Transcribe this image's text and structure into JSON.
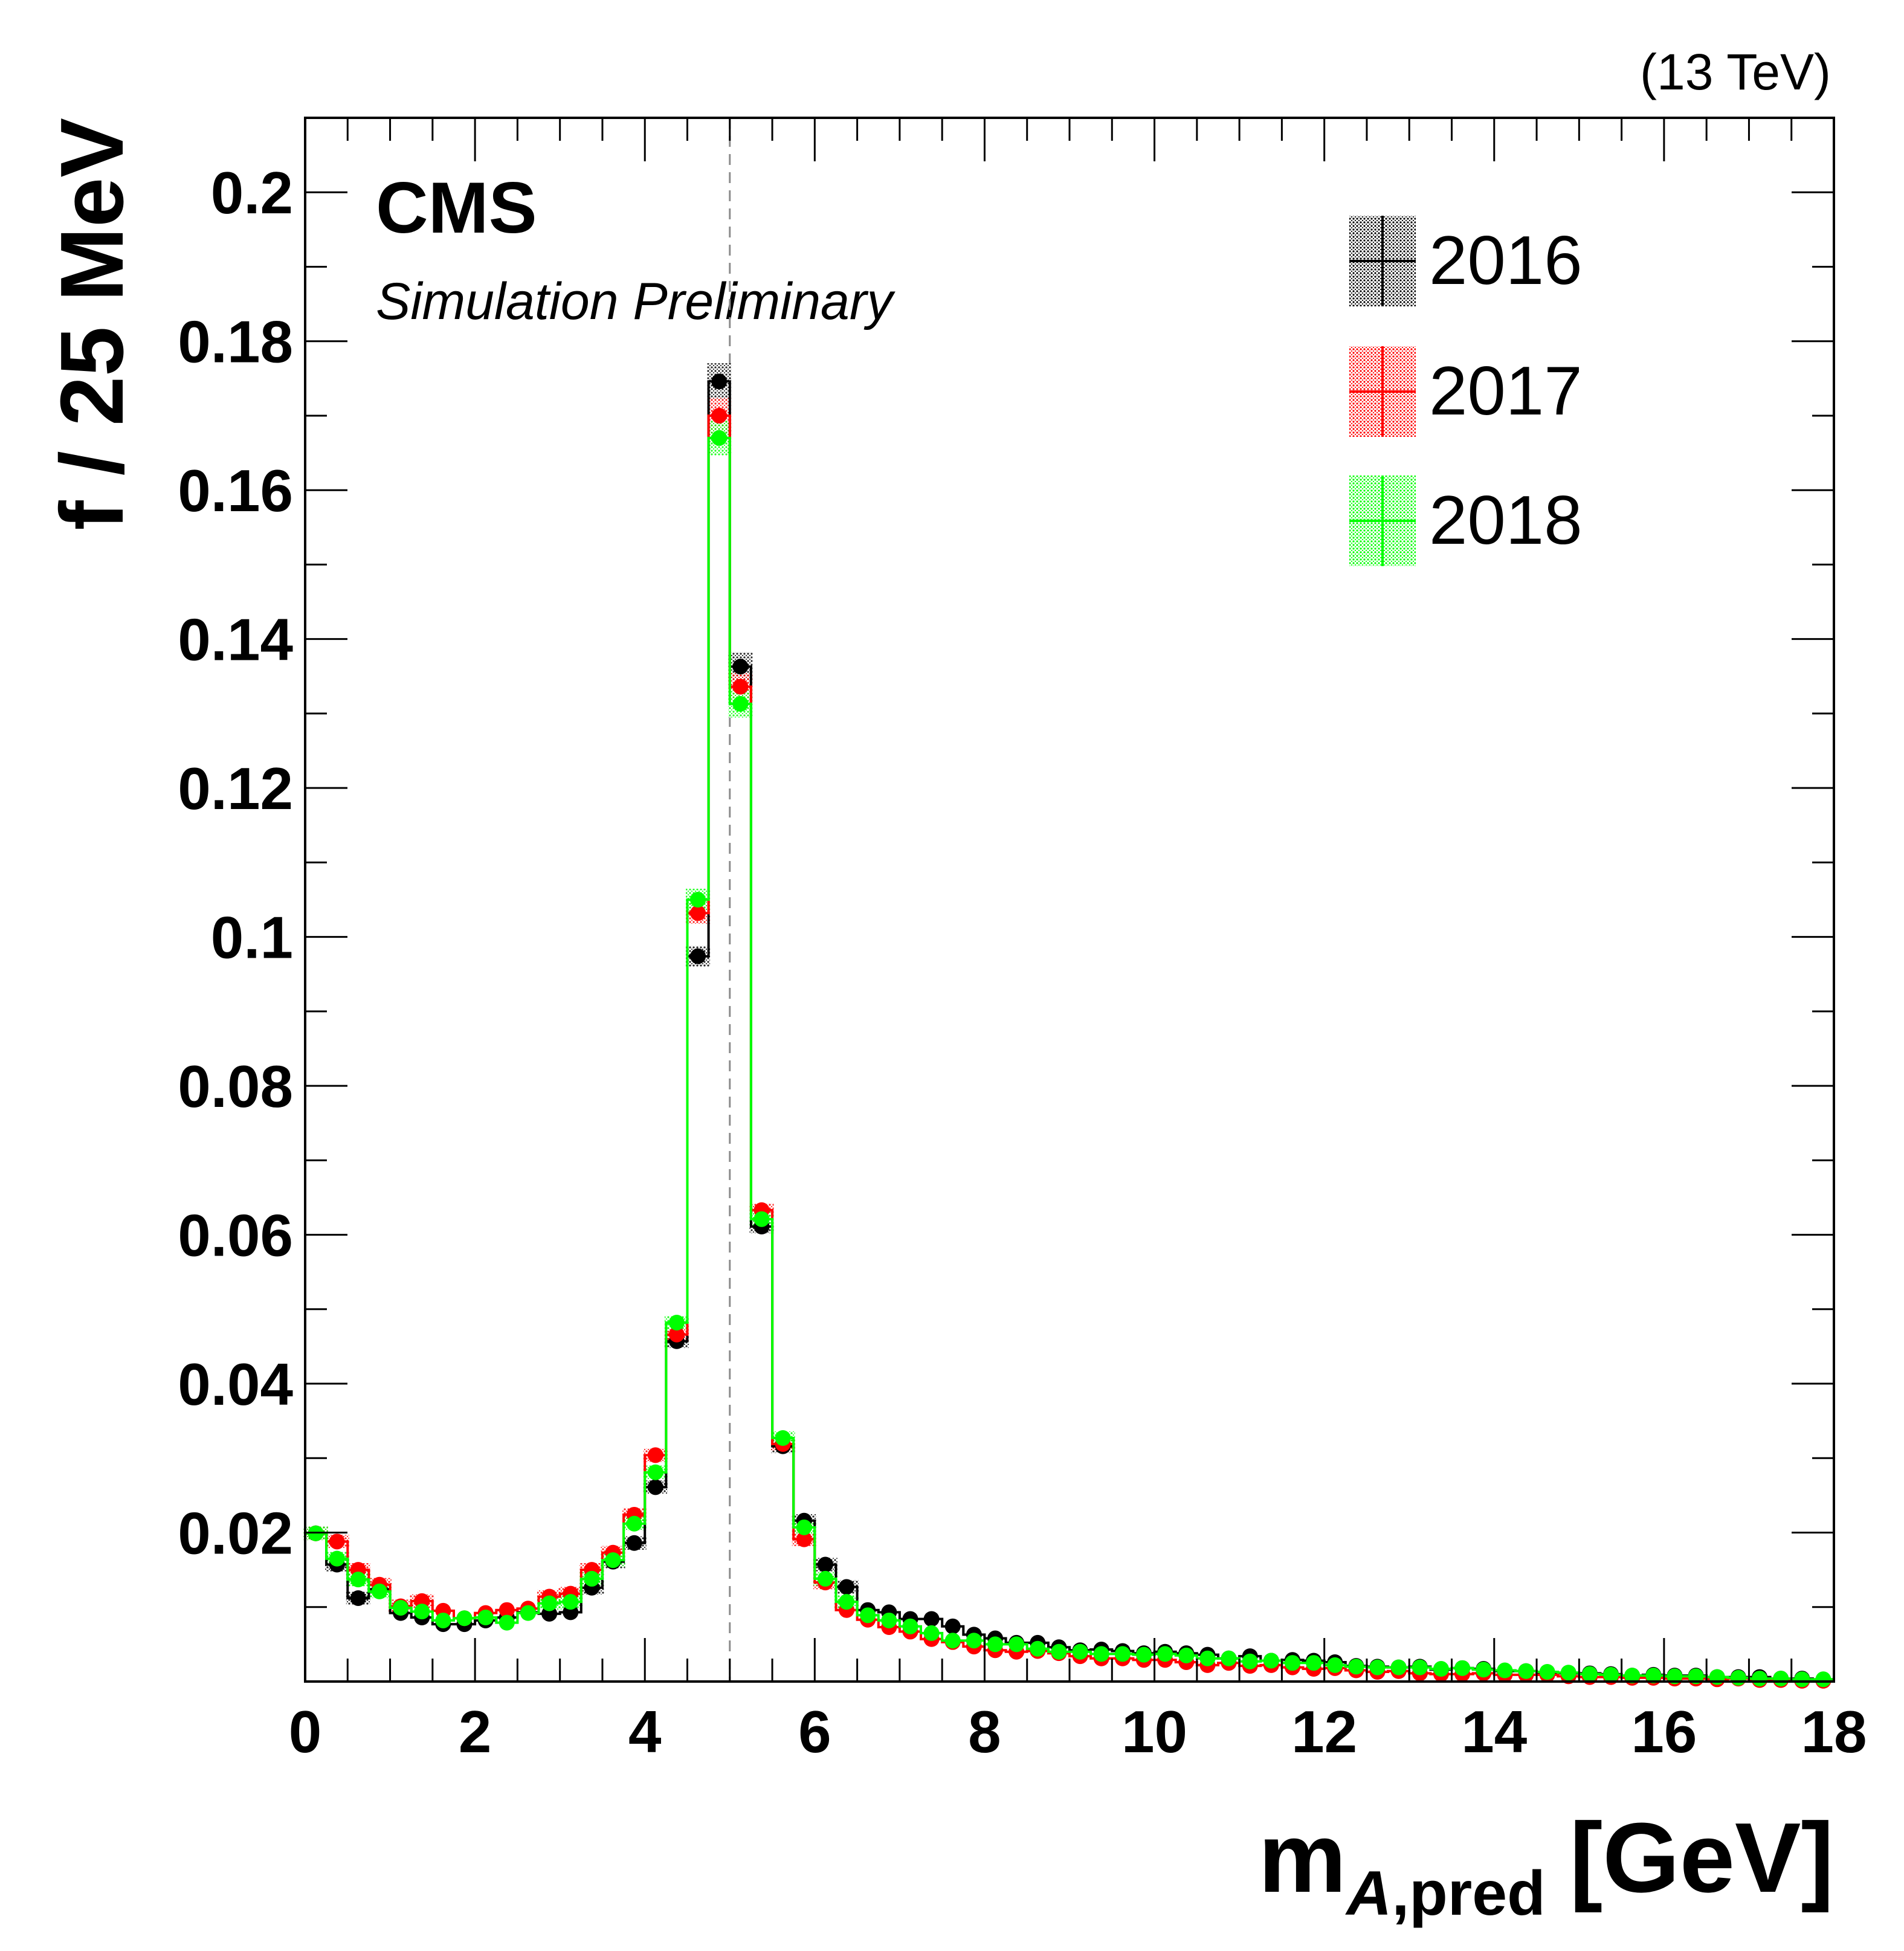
{
  "header": {
    "energy": "(13 TeV)",
    "experiment": "CMS",
    "status": "Simulation Preliminary"
  },
  "chart_data": {
    "type": "scatter",
    "title": "",
    "xlabel_main": "m",
    "xlabel_sub": "A,pred",
    "xlabel_unit": "[GeV]",
    "ylabel": "f / 25 MeV",
    "xlim": [
      0,
      18
    ],
    "ylim": [
      0,
      0.21
    ],
    "xticks": [
      0,
      2,
      4,
      6,
      8,
      10,
      12,
      14,
      16,
      18
    ],
    "xtick_labels": [
      "0",
      "2",
      "4",
      "6",
      "8",
      "10",
      "12",
      "14",
      "16",
      "18"
    ],
    "yticks": [
      0.02,
      0.04,
      0.06,
      0.08,
      0.1,
      0.12,
      0.14,
      0.16,
      0.18,
      0.2
    ],
    "ytick_labels": [
      "0.02",
      "0.04",
      "0.06",
      "0.08",
      "0.1",
      "0.12",
      "0.14",
      "0.16",
      "0.18",
      "0.2"
    ],
    "reference_line_x": 5.0,
    "legend_position": "top-right",
    "bin_width": 0.25,
    "x": [
      0.125,
      0.375,
      0.625,
      0.875,
      1.125,
      1.375,
      1.625,
      1.875,
      2.125,
      2.375,
      2.625,
      2.875,
      3.125,
      3.375,
      3.625,
      3.875,
      4.125,
      4.375,
      4.625,
      4.875,
      5.125,
      5.375,
      5.625,
      5.875,
      6.125,
      6.375,
      6.625,
      6.875,
      7.125,
      7.375,
      7.625,
      7.875,
      8.125,
      8.375,
      8.625,
      8.875,
      9.125,
      9.375,
      9.625,
      9.875,
      10.125,
      10.375,
      10.625,
      10.875,
      11.125,
      11.375,
      11.625,
      11.875,
      12.125,
      12.375,
      12.625,
      12.875,
      13.125,
      13.375,
      13.625,
      13.875,
      14.125,
      14.375,
      14.625,
      14.875,
      15.125,
      15.375,
      15.625,
      15.875,
      16.125,
      16.375,
      16.625,
      16.875,
      17.125,
      17.375,
      17.625,
      17.875
    ],
    "series": [
      {
        "name": "2016",
        "color": "#000000",
        "values": [
          0.0199,
          0.0157,
          0.0112,
          0.0124,
          0.0092,
          0.0086,
          0.0077,
          0.0077,
          0.0082,
          0.0086,
          0.0093,
          0.0091,
          0.0093,
          0.0126,
          0.0161,
          0.0186,
          0.0261,
          0.0457,
          0.0974,
          0.1746,
          0.1363,
          0.0611,
          0.0316,
          0.0216,
          0.0157,
          0.0127,
          0.0096,
          0.0093,
          0.0084,
          0.0084,
          0.0074,
          0.0063,
          0.0058,
          0.0052,
          0.0052,
          0.0046,
          0.0042,
          0.0043,
          0.0041,
          0.0038,
          0.004,
          0.0038,
          0.0036,
          0.0031,
          0.0034,
          0.0028,
          0.0029,
          0.0028,
          0.0026,
          0.0021,
          0.002,
          0.0019,
          0.002,
          0.0016,
          0.0018,
          0.0017,
          0.0014,
          0.0014,
          0.0012,
          0.0011,
          0.0011,
          0.001,
          0.0008,
          0.0009,
          0.0008,
          0.0008,
          0.0006,
          0.0006,
          0.0006,
          0.0004,
          0.0004,
          0.0002
        ]
      },
      {
        "name": "2017",
        "color": "#ff0000",
        "values": [
          0.0199,
          0.0188,
          0.015,
          0.013,
          0.0101,
          0.0108,
          0.0095,
          0.0085,
          0.0092,
          0.0096,
          0.0098,
          0.0114,
          0.0118,
          0.015,
          0.0173,
          0.0224,
          0.0304,
          0.0466,
          0.1032,
          0.17,
          0.1336,
          0.0633,
          0.0319,
          0.0191,
          0.0133,
          0.0096,
          0.0083,
          0.0073,
          0.0067,
          0.0057,
          0.0053,
          0.0047,
          0.0042,
          0.004,
          0.0041,
          0.0038,
          0.0034,
          0.0031,
          0.0031,
          0.0029,
          0.0029,
          0.0026,
          0.0022,
          0.0025,
          0.0021,
          0.0022,
          0.0019,
          0.0017,
          0.0018,
          0.0015,
          0.0013,
          0.0014,
          0.0011,
          0.001,
          0.001,
          0.0011,
          0.0009,
          0.0009,
          0.0009,
          0.0007,
          0.0006,
          0.0006,
          0.0005,
          0.0005,
          0.0004,
          0.0004,
          0.0003,
          0.0004,
          0.0002,
          0.0002,
          0.0001,
          0.0001
        ]
      },
      {
        "name": "2018",
        "color": "#00ff00",
        "values": [
          0.0199,
          0.0165,
          0.0137,
          0.0121,
          0.0099,
          0.0094,
          0.0082,
          0.0085,
          0.0086,
          0.0079,
          0.0092,
          0.0105,
          0.0107,
          0.0138,
          0.0163,
          0.0212,
          0.0281,
          0.0482,
          0.105,
          0.167,
          0.1313,
          0.0621,
          0.0327,
          0.0207,
          0.0138,
          0.0107,
          0.0089,
          0.0082,
          0.0074,
          0.0065,
          0.0055,
          0.0055,
          0.005,
          0.005,
          0.0044,
          0.004,
          0.004,
          0.0037,
          0.0037,
          0.0036,
          0.0037,
          0.0035,
          0.0031,
          0.0031,
          0.0027,
          0.0028,
          0.0025,
          0.0025,
          0.0022,
          0.002,
          0.0019,
          0.0019,
          0.0019,
          0.0017,
          0.0018,
          0.0016,
          0.0015,
          0.0014,
          0.0013,
          0.0012,
          0.001,
          0.0009,
          0.0008,
          0.0008,
          0.0007,
          0.0007,
          0.0006,
          0.0005,
          0.0004,
          0.0004,
          0.0003,
          0.0003
        ]
      }
    ]
  }
}
